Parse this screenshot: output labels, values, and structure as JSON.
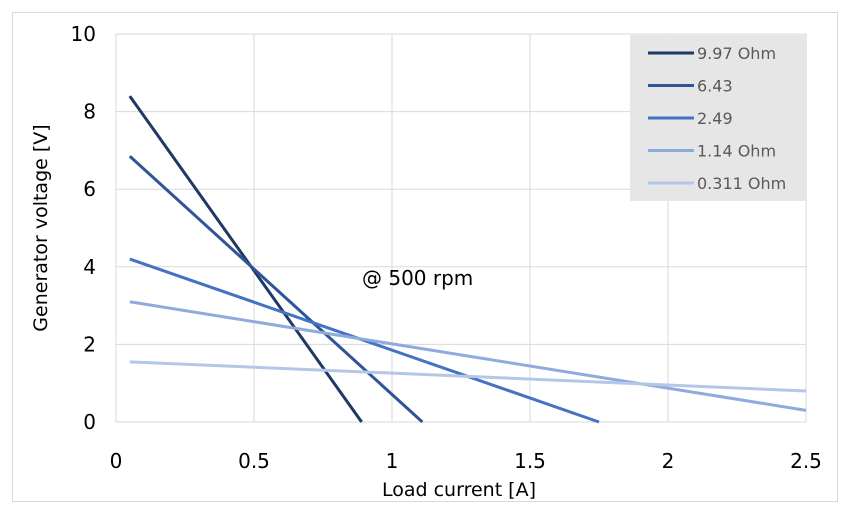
{
  "chart_data": {
    "type": "line",
    "xlabel": "Load current [A]",
    "ylabel": "Generator voltage [V]",
    "xlim": [
      0,
      2.5
    ],
    "ylim": [
      0,
      10
    ],
    "x_ticks": [
      "0",
      "0.5",
      "1",
      "1.5",
      "2",
      "2.5"
    ],
    "y_ticks": [
      "0",
      "2",
      "4",
      "6",
      "8",
      "10"
    ],
    "x_tick_values": [
      0,
      0.5,
      1,
      1.5,
      2,
      2.5
    ],
    "y_tick_values": [
      0,
      2,
      4,
      6,
      8,
      10
    ],
    "grid": true,
    "legend_position": "top-right",
    "annotation": "@ 500 rpm",
    "series": [
      {
        "name": "9.97 Ohm",
        "color": "#1f3864",
        "points": [
          [
            0.05,
            8.4
          ],
          [
            0.89,
            0.0
          ]
        ]
      },
      {
        "name": "6.43",
        "color": "#2f5597",
        "points": [
          [
            0.05,
            6.85
          ],
          [
            1.11,
            0.0
          ]
        ]
      },
      {
        "name": "2.49",
        "color": "#4472c4",
        "points": [
          [
            0.05,
            4.2
          ],
          [
            1.75,
            0.0
          ]
        ]
      },
      {
        "name": "1.14 Ohm",
        "color": "#8faadc",
        "points": [
          [
            0.05,
            3.1
          ],
          [
            2.5,
            0.3
          ]
        ]
      },
      {
        "name": "0.311 Ohm",
        "color": "#b4c7e7",
        "points": [
          [
            0.05,
            1.55
          ],
          [
            2.5,
            0.8
          ]
        ]
      }
    ]
  }
}
